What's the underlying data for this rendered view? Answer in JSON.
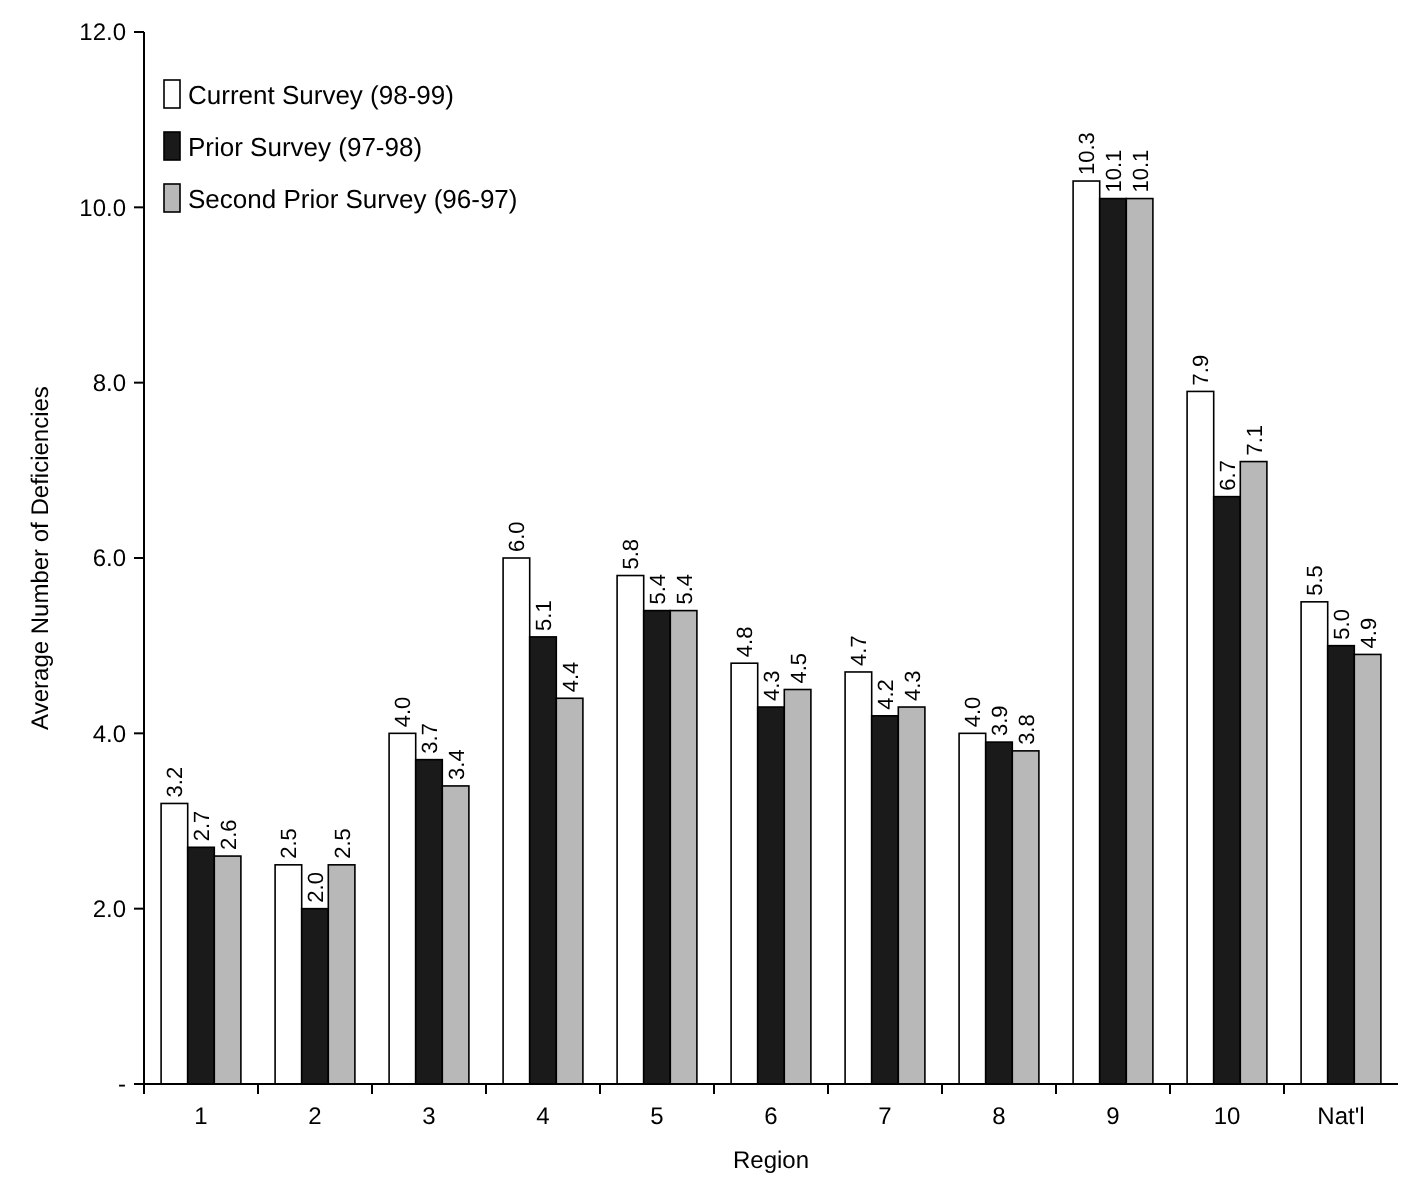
{
  "chart_data": {
    "type": "bar",
    "xlabel": "Region",
    "ylabel": "Average Number of Deficiencies",
    "categories": [
      "1",
      "2",
      "3",
      "4",
      "5",
      "6",
      "7",
      "8",
      "9",
      "10",
      "Nat'l"
    ],
    "series": [
      {
        "name": "Current Survey (98-99)",
        "color": "#ffffff",
        "values": [
          3.2,
          2.5,
          4.0,
          6.0,
          5.8,
          4.8,
          4.7,
          4.0,
          10.3,
          7.9,
          5.5
        ],
        "value_labels": [
          "3.2",
          "2.5",
          "4.0",
          "6.0",
          "5.8",
          "4.8",
          "4.7",
          "4.0",
          "10.3",
          "7.9",
          "5.5"
        ]
      },
      {
        "name": "Prior Survey (97-98)",
        "color": "#1a1a1a",
        "values": [
          2.7,
          2.0,
          3.7,
          5.1,
          5.4,
          4.3,
          4.2,
          3.9,
          10.1,
          6.7,
          5.0
        ],
        "value_labels": [
          "2.7",
          "2.0",
          "3.7",
          "5.1",
          "5.4",
          "4.3",
          "4.2",
          "3.9",
          "10.1",
          "6.7",
          "5.0"
        ]
      },
      {
        "name": "Second Prior Survey (96-97)",
        "color": "#b8b8b8",
        "values": [
          2.6,
          2.5,
          3.4,
          4.4,
          5.4,
          4.5,
          4.3,
          3.8,
          10.1,
          7.1,
          4.9
        ],
        "value_labels": [
          "2.6",
          "2.5",
          "3.4",
          "4.4",
          "5.4",
          "4.5",
          "4.3",
          "3.8",
          "10.1",
          "7.1",
          "4.9"
        ]
      }
    ],
    "ylim": [
      0,
      12
    ],
    "yticks": [
      {
        "value": 0,
        "label": "-"
      },
      {
        "value": 2,
        "label": "2.0"
      },
      {
        "value": 4,
        "label": "4.0"
      },
      {
        "value": 6,
        "label": "6.0"
      },
      {
        "value": 8,
        "label": "8.0"
      },
      {
        "value": 10,
        "label": "10.0"
      },
      {
        "value": 12,
        "label": "12.0"
      }
    ],
    "grid": false,
    "legend": "top left"
  }
}
